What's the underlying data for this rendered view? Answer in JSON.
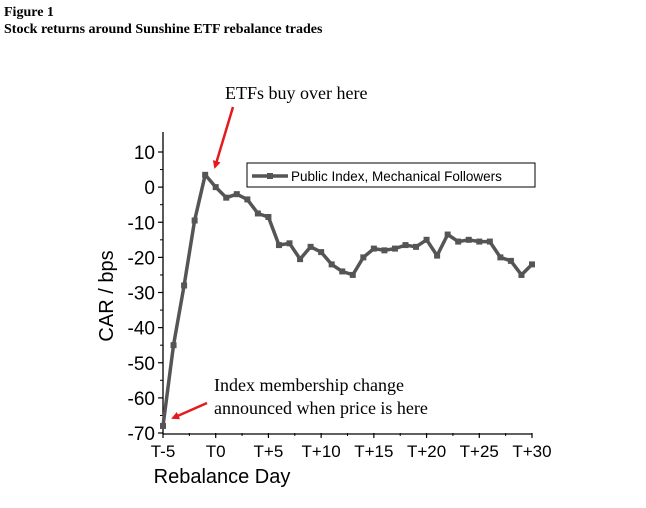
{
  "figure": {
    "label": "Figure 1",
    "title": "Stock returns around Sunshine ETF rebalance trades"
  },
  "annotations": {
    "buy": "ETFs buy over here",
    "announce_line1": "Index membership change",
    "announce_line2": "announced when price is here"
  },
  "colors": {
    "series": "#555555",
    "arrow": "#e41a1c"
  },
  "chart_data": {
    "type": "line",
    "xlabel": "Rebalance Day",
    "ylabel": "CAR / bps",
    "xlim": [
      -5,
      30
    ],
    "ylim": [
      -70,
      10
    ],
    "x_ticks": [
      -5,
      0,
      5,
      10,
      15,
      20,
      25,
      30
    ],
    "x_tick_labels": [
      "T-5",
      "T0",
      "T+5",
      "T+10",
      "T+15",
      "T+20",
      "T+25",
      "T+30"
    ],
    "y_ticks": [
      10,
      0,
      -10,
      -20,
      -30,
      -40,
      -50,
      -60,
      -70
    ],
    "y_tick_labels": [
      "10",
      "0",
      "-10",
      "-20",
      "-30",
      "-40",
      "-50",
      "-60",
      "-70"
    ],
    "grid": false,
    "legend_position": "top-right",
    "series": [
      {
        "name": "Public Index, Mechanical Followers",
        "marker": "square",
        "x": [
          -5,
          -4,
          -3,
          -2,
          -1,
          0,
          1,
          2,
          3,
          4,
          5,
          6,
          7,
          8,
          9,
          10,
          11,
          12,
          13,
          14,
          15,
          16,
          17,
          18,
          19,
          20,
          21,
          22,
          23,
          24,
          25,
          26,
          27,
          28,
          29,
          30
        ],
        "values": [
          -68,
          -45,
          -28,
          -9.5,
          3.5,
          0,
          -3,
          -2,
          -3.5,
          -7.5,
          -8.5,
          -16.5,
          -16,
          -20.5,
          -17,
          -18.5,
          -22,
          -24,
          -25,
          -20,
          -17.5,
          -18,
          -17.5,
          -16.5,
          -17,
          -15,
          -19.5,
          -13.5,
          -15.5,
          -15,
          -15.5,
          -15.5,
          -20,
          -21,
          -25,
          -22
        ]
      }
    ]
  }
}
